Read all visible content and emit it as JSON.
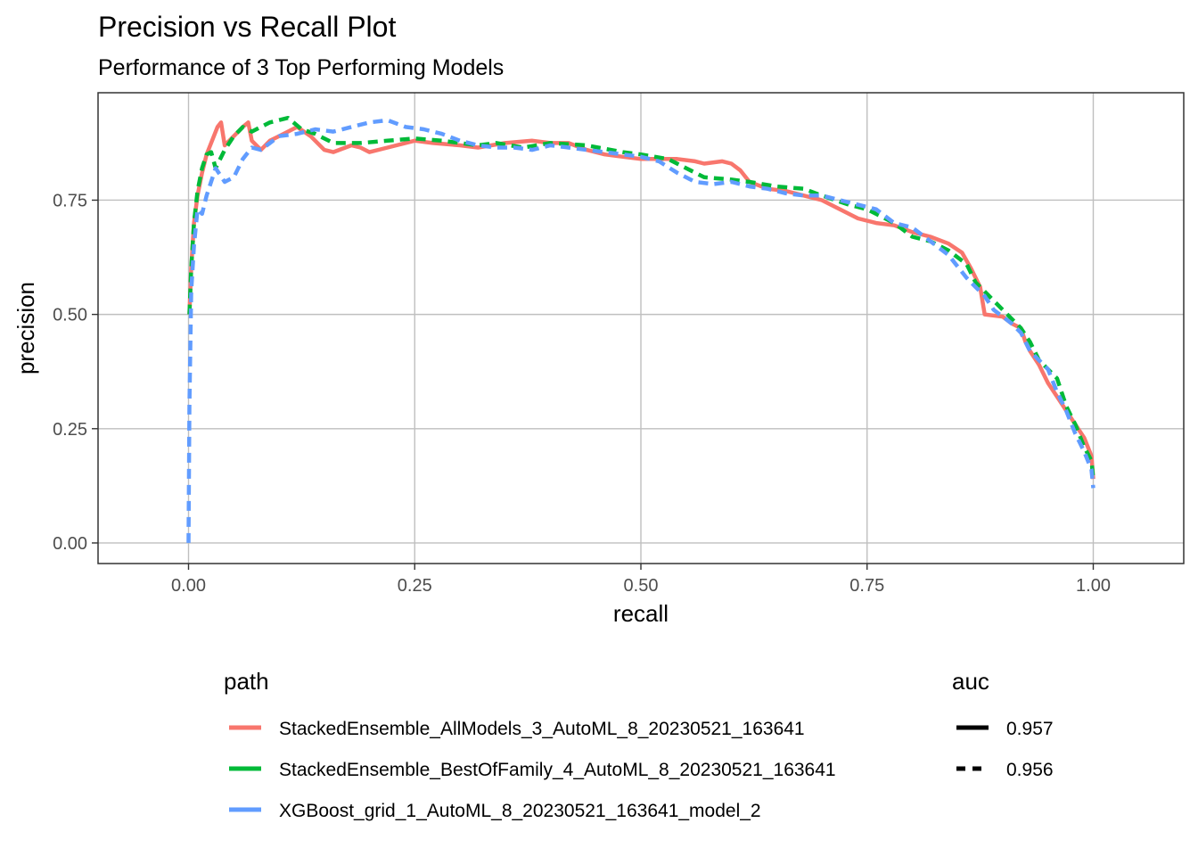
{
  "chart_data": {
    "type": "line",
    "title": "Precision vs Recall Plot",
    "subtitle": "Performance of 3 Top Performing Models",
    "xlabel": "recall",
    "ylabel": "precision",
    "xlim": [
      -0.1,
      1.1
    ],
    "ylim": [
      -0.045,
      0.985
    ],
    "x_ticks": [
      0.0,
      0.25,
      0.5,
      0.75,
      1.0
    ],
    "x_tick_labels": [
      "0.00",
      "0.25",
      "0.50",
      "0.75",
      "1.00"
    ],
    "y_ticks": [
      0.0,
      0.25,
      0.5,
      0.75
    ],
    "y_tick_labels": [
      "0.00",
      "0.25",
      "0.50",
      "0.75"
    ],
    "grid": true,
    "legend_placement": "bottom",
    "legend_color_title": "path",
    "legend_linetype_title": "auc",
    "linetype_legend": [
      {
        "label": "0.957",
        "dash": "solid"
      },
      {
        "label": "0.956",
        "dash": "dashed"
      }
    ],
    "series": [
      {
        "name": "StackedEnsemble_AllModels_3_AutoML_8_20230521_163641",
        "color": "#F8766D",
        "dash": "solid",
        "points": [
          [
            0.001,
            0.5
          ],
          [
            0.003,
            0.6
          ],
          [
            0.006,
            0.7
          ],
          [
            0.01,
            0.76
          ],
          [
            0.015,
            0.81
          ],
          [
            0.02,
            0.85
          ],
          [
            0.026,
            0.88
          ],
          [
            0.032,
            0.91
          ],
          [
            0.036,
            0.92
          ],
          [
            0.04,
            0.87
          ],
          [
            0.05,
            0.89
          ],
          [
            0.06,
            0.91
          ],
          [
            0.066,
            0.92
          ],
          [
            0.07,
            0.88
          ],
          [
            0.08,
            0.86
          ],
          [
            0.09,
            0.88
          ],
          [
            0.1,
            0.89
          ],
          [
            0.12,
            0.91
          ],
          [
            0.135,
            0.89
          ],
          [
            0.15,
            0.86
          ],
          [
            0.16,
            0.855
          ],
          [
            0.18,
            0.87
          ],
          [
            0.19,
            0.865
          ],
          [
            0.2,
            0.855
          ],
          [
            0.22,
            0.865
          ],
          [
            0.25,
            0.88
          ],
          [
            0.27,
            0.875
          ],
          [
            0.3,
            0.87
          ],
          [
            0.32,
            0.865
          ],
          [
            0.35,
            0.875
          ],
          [
            0.38,
            0.88
          ],
          [
            0.4,
            0.875
          ],
          [
            0.42,
            0.875
          ],
          [
            0.44,
            0.86
          ],
          [
            0.46,
            0.85
          ],
          [
            0.48,
            0.845
          ],
          [
            0.5,
            0.84
          ],
          [
            0.52,
            0.84
          ],
          [
            0.54,
            0.84
          ],
          [
            0.56,
            0.835
          ],
          [
            0.57,
            0.83
          ],
          [
            0.59,
            0.835
          ],
          [
            0.6,
            0.83
          ],
          [
            0.61,
            0.815
          ],
          [
            0.62,
            0.79
          ],
          [
            0.64,
            0.775
          ],
          [
            0.66,
            0.77
          ],
          [
            0.68,
            0.76
          ],
          [
            0.7,
            0.75
          ],
          [
            0.72,
            0.73
          ],
          [
            0.74,
            0.71
          ],
          [
            0.76,
            0.7
          ],
          [
            0.78,
            0.695
          ],
          [
            0.8,
            0.68
          ],
          [
            0.82,
            0.67
          ],
          [
            0.84,
            0.655
          ],
          [
            0.855,
            0.635
          ],
          [
            0.865,
            0.6
          ],
          [
            0.875,
            0.56
          ],
          [
            0.88,
            0.5
          ],
          [
            0.9,
            0.495
          ],
          [
            0.91,
            0.48
          ],
          [
            0.92,
            0.47
          ],
          [
            0.925,
            0.44
          ],
          [
            0.93,
            0.42
          ],
          [
            0.94,
            0.39
          ],
          [
            0.95,
            0.35
          ],
          [
            0.96,
            0.32
          ],
          [
            0.97,
            0.29
          ],
          [
            0.98,
            0.26
          ],
          [
            0.99,
            0.23
          ],
          [
            0.998,
            0.19
          ],
          [
            1.0,
            0.14
          ]
        ]
      },
      {
        "name": "StackedEnsemble_BestOfFamily_4_AutoML_8_20230521_163641",
        "color": "#00BA38",
        "dash": "dashed",
        "points": [
          [
            0.001,
            0.5
          ],
          [
            0.003,
            0.6
          ],
          [
            0.006,
            0.7
          ],
          [
            0.01,
            0.77
          ],
          [
            0.015,
            0.82
          ],
          [
            0.02,
            0.85
          ],
          [
            0.025,
            0.855
          ],
          [
            0.03,
            0.82
          ],
          [
            0.04,
            0.86
          ],
          [
            0.05,
            0.89
          ],
          [
            0.06,
            0.91
          ],
          [
            0.07,
            0.9
          ],
          [
            0.08,
            0.91
          ],
          [
            0.09,
            0.92
          ],
          [
            0.11,
            0.93
          ],
          [
            0.125,
            0.905
          ],
          [
            0.14,
            0.895
          ],
          [
            0.16,
            0.875
          ],
          [
            0.19,
            0.875
          ],
          [
            0.22,
            0.88
          ],
          [
            0.25,
            0.885
          ],
          [
            0.28,
            0.88
          ],
          [
            0.32,
            0.87
          ],
          [
            0.34,
            0.875
          ],
          [
            0.37,
            0.865
          ],
          [
            0.4,
            0.875
          ],
          [
            0.44,
            0.87
          ],
          [
            0.48,
            0.855
          ],
          [
            0.5,
            0.85
          ],
          [
            0.53,
            0.84
          ],
          [
            0.55,
            0.82
          ],
          [
            0.57,
            0.8
          ],
          [
            0.6,
            0.795
          ],
          [
            0.62,
            0.79
          ],
          [
            0.65,
            0.78
          ],
          [
            0.68,
            0.775
          ],
          [
            0.7,
            0.76
          ],
          [
            0.73,
            0.74
          ],
          [
            0.75,
            0.73
          ],
          [
            0.78,
            0.7
          ],
          [
            0.8,
            0.67
          ],
          [
            0.82,
            0.66
          ],
          [
            0.84,
            0.64
          ],
          [
            0.86,
            0.61
          ],
          [
            0.87,
            0.57
          ],
          [
            0.88,
            0.55
          ],
          [
            0.9,
            0.51
          ],
          [
            0.92,
            0.47
          ],
          [
            0.93,
            0.44
          ],
          [
            0.94,
            0.4
          ],
          [
            0.95,
            0.38
          ],
          [
            0.96,
            0.36
          ],
          [
            0.97,
            0.3
          ],
          [
            0.98,
            0.26
          ],
          [
            0.99,
            0.21
          ],
          [
            0.998,
            0.18
          ],
          [
            1.0,
            0.14
          ]
        ]
      },
      {
        "name": "XGBoost_grid_1_AutoML_8_20230521_163641_model_2",
        "color": "#619CFF",
        "dash": "dashed",
        "points": [
          [
            0.0,
            0.0
          ],
          [
            0.001,
            0.3
          ],
          [
            0.003,
            0.55
          ],
          [
            0.006,
            0.65
          ],
          [
            0.01,
            0.73
          ],
          [
            0.015,
            0.72
          ],
          [
            0.02,
            0.76
          ],
          [
            0.03,
            0.82
          ],
          [
            0.04,
            0.79
          ],
          [
            0.05,
            0.8
          ],
          [
            0.06,
            0.84
          ],
          [
            0.07,
            0.865
          ],
          [
            0.08,
            0.86
          ],
          [
            0.09,
            0.875
          ],
          [
            0.1,
            0.89
          ],
          [
            0.12,
            0.895
          ],
          [
            0.14,
            0.905
          ],
          [
            0.16,
            0.9
          ],
          [
            0.18,
            0.91
          ],
          [
            0.2,
            0.92
          ],
          [
            0.22,
            0.925
          ],
          [
            0.24,
            0.91
          ],
          [
            0.26,
            0.905
          ],
          [
            0.28,
            0.895
          ],
          [
            0.3,
            0.88
          ],
          [
            0.32,
            0.87
          ],
          [
            0.34,
            0.865
          ],
          [
            0.36,
            0.865
          ],
          [
            0.38,
            0.86
          ],
          [
            0.4,
            0.87
          ],
          [
            0.42,
            0.865
          ],
          [
            0.44,
            0.86
          ],
          [
            0.46,
            0.855
          ],
          [
            0.48,
            0.85
          ],
          [
            0.5,
            0.845
          ],
          [
            0.52,
            0.835
          ],
          [
            0.54,
            0.81
          ],
          [
            0.56,
            0.79
          ],
          [
            0.58,
            0.785
          ],
          [
            0.6,
            0.79
          ],
          [
            0.62,
            0.78
          ],
          [
            0.64,
            0.775
          ],
          [
            0.66,
            0.765
          ],
          [
            0.68,
            0.76
          ],
          [
            0.7,
            0.76
          ],
          [
            0.72,
            0.75
          ],
          [
            0.74,
            0.74
          ],
          [
            0.76,
            0.73
          ],
          [
            0.78,
            0.7
          ],
          [
            0.8,
            0.69
          ],
          [
            0.82,
            0.66
          ],
          [
            0.84,
            0.63
          ],
          [
            0.86,
            0.58
          ],
          [
            0.87,
            0.56
          ],
          [
            0.88,
            0.54
          ],
          [
            0.89,
            0.51
          ],
          [
            0.9,
            0.495
          ],
          [
            0.91,
            0.48
          ],
          [
            0.92,
            0.46
          ],
          [
            0.93,
            0.42
          ],
          [
            0.94,
            0.4
          ],
          [
            0.95,
            0.38
          ],
          [
            0.96,
            0.33
          ],
          [
            0.97,
            0.29
          ],
          [
            0.98,
            0.24
          ],
          [
            0.99,
            0.2
          ],
          [
            0.998,
            0.16
          ],
          [
            1.0,
            0.12
          ]
        ]
      }
    ]
  }
}
